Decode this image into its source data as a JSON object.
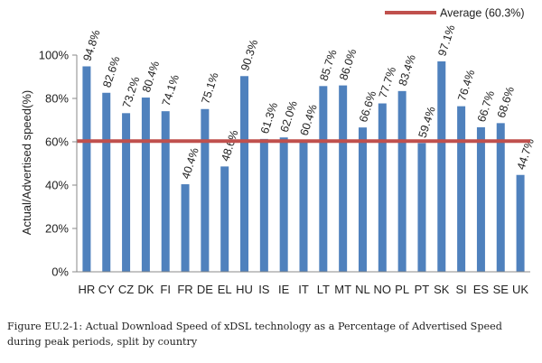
{
  "chart_data": {
    "type": "bar",
    "categories": [
      "HR",
      "CY",
      "CZ",
      "DK",
      "FI",
      "FR",
      "DE",
      "EL",
      "HU",
      "IS",
      "IE",
      "IT",
      "LT",
      "MT",
      "NL",
      "NO",
      "PL",
      "PT",
      "SK",
      "SI",
      "ES",
      "SE",
      "UK"
    ],
    "values": [
      94.8,
      82.6,
      73.2,
      80.4,
      74.1,
      40.4,
      75.1,
      48.6,
      90.3,
      61.3,
      62.0,
      60.4,
      85.7,
      86.0,
      66.6,
      77.7,
      83.4,
      59.4,
      97.1,
      76.4,
      66.7,
      68.6,
      44.7
    ],
    "value_labels": [
      "94.8%",
      "82.6%",
      "73.2%",
      "80.4%",
      "74.1%",
      "40.4%",
      "75.1%",
      "48.6%",
      "90.3%",
      "61.3%",
      "62.0%",
      "60.4%",
      "85.7%",
      "86.0%",
      "66.6%",
      "77.7%",
      "83.4%",
      "59.4%",
      "97.1%",
      "76.4%",
      "66.7%",
      "68.6%",
      "44.7%"
    ],
    "ylabel": "Actual/Advertised speed(%)",
    "ylim": [
      0,
      100
    ],
    "yticks": [
      0,
      20,
      40,
      60,
      80,
      100
    ],
    "ytick_labels": [
      "0%",
      "20%",
      "40%",
      "60%",
      "80%",
      "100%"
    ],
    "reference_line": {
      "name": "Average (60.3%)",
      "value": 60.3
    },
    "legend_position": "top-right",
    "grid": false,
    "colors": {
      "bar": "#4f81bd",
      "average_line": "#c0504d",
      "axis": "#888888"
    }
  },
  "caption": "Figure EU.2-1: Actual Download Speed of xDSL technology as a Percentage of Advertised Speed during peak periods, split by country"
}
